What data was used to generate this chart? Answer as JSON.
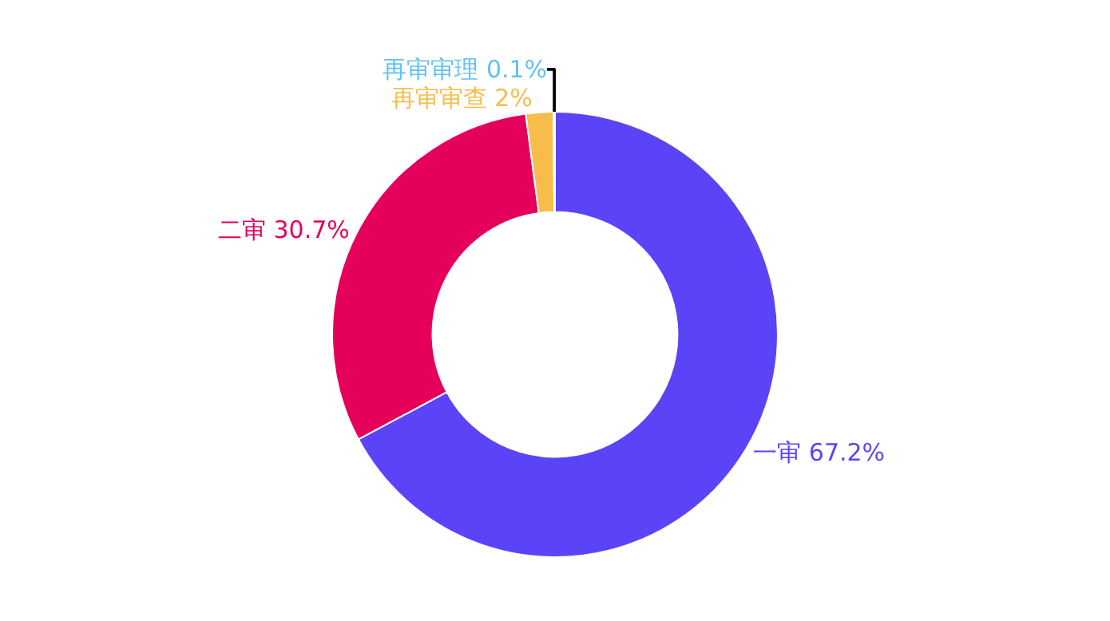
{
  "chart_data": {
    "type": "donut",
    "categories": [
      "一审",
      "二审",
      "再审审查",
      "再审审理"
    ],
    "values": [
      67.2,
      30.7,
      2,
      0.1
    ],
    "value_labels": [
      "67.2%",
      "30.7%",
      "2%",
      "0.1%"
    ],
    "colors": [
      "#5b44f8",
      "#e5005b",
      "#f6bd4a",
      "#5fc3f0"
    ],
    "legend": false
  }
}
